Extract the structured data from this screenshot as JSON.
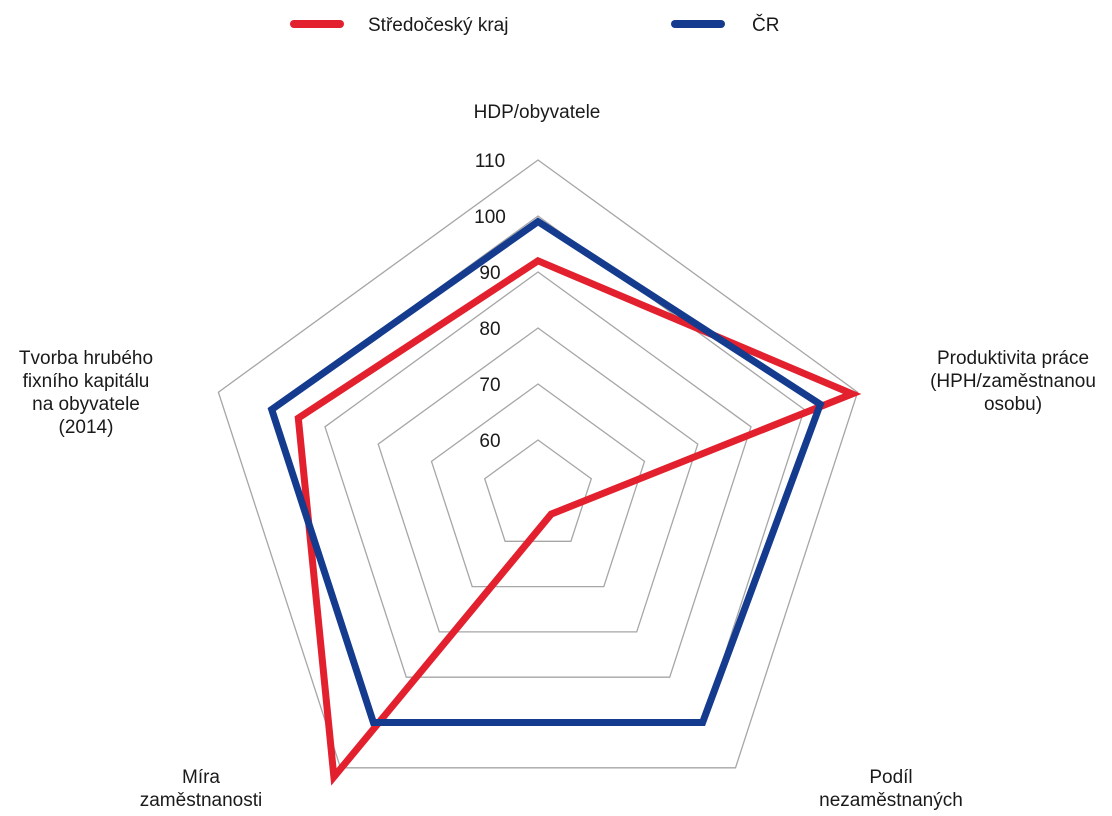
{
  "chart_data": {
    "type": "radar",
    "axes": [
      [
        "HDP/obyvatele"
      ],
      [
        "Produktivita práce",
        "(HPH/zaměstnanou",
        "osobu)"
      ],
      [
        "Podíl",
        "nezaměstnaných"
      ],
      [
        "Míra",
        "zaměstnanosti"
      ],
      [
        "Tvorba hrubého",
        "fixního kapitálu",
        "na obyvatele",
        "(2014)"
      ]
    ],
    "rlim": [
      50,
      110
    ],
    "ticks": [
      60,
      70,
      80,
      90,
      100,
      110
    ],
    "grid": true,
    "legend_position": "top",
    "series": [
      {
        "name": "Středočeský kraj",
        "color": "#e3202e",
        "values": [
          92,
          109,
          54,
          112,
          95
        ]
      },
      {
        "name": "ČR",
        "color": "#153b8e",
        "values": [
          99,
          103,
          100,
          100,
          100
        ]
      }
    ]
  }
}
